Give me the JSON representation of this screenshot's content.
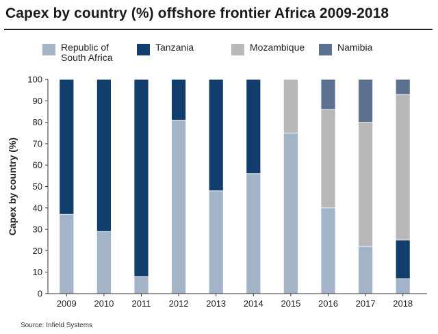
{
  "title": "Capex by country (%) offshore frontier Africa 2009-2018",
  "source": "Source: Infield Systems",
  "chart_data": {
    "type": "bar",
    "stacked": true,
    "title": "Capex by country (%) offshore frontier Africa 2009-2018",
    "xlabel": "",
    "ylabel": "Capex by country (%)",
    "ylim": [
      0,
      100
    ],
    "yticks": [
      0,
      10,
      20,
      30,
      40,
      50,
      60,
      70,
      80,
      90,
      100
    ],
    "grid": false,
    "legend_position": "top",
    "categories": [
      "2009",
      "2010",
      "2011",
      "2012",
      "2013",
      "2014",
      "2015",
      "2016",
      "2017",
      "2018"
    ],
    "series": [
      {
        "name": "Republic of\nSouth Africa",
        "color": "#a3b3c8",
        "values": [
          37,
          29,
          8,
          81,
          48,
          56,
          75,
          40,
          22,
          7
        ]
      },
      {
        "name": "Tanzania",
        "color": "#123e6e",
        "values": [
          63,
          71,
          92,
          19,
          52,
          44,
          0,
          0,
          0,
          18
        ]
      },
      {
        "name": "Mozambique",
        "color": "#b8b8b8",
        "values": [
          0,
          0,
          0,
          0,
          0,
          0,
          25,
          46,
          58,
          68
        ]
      },
      {
        "name": "Namibia",
        "color": "#5c7091",
        "values": [
          0,
          0,
          0,
          0,
          0,
          0,
          0,
          14,
          20,
          7
        ]
      }
    ]
  }
}
